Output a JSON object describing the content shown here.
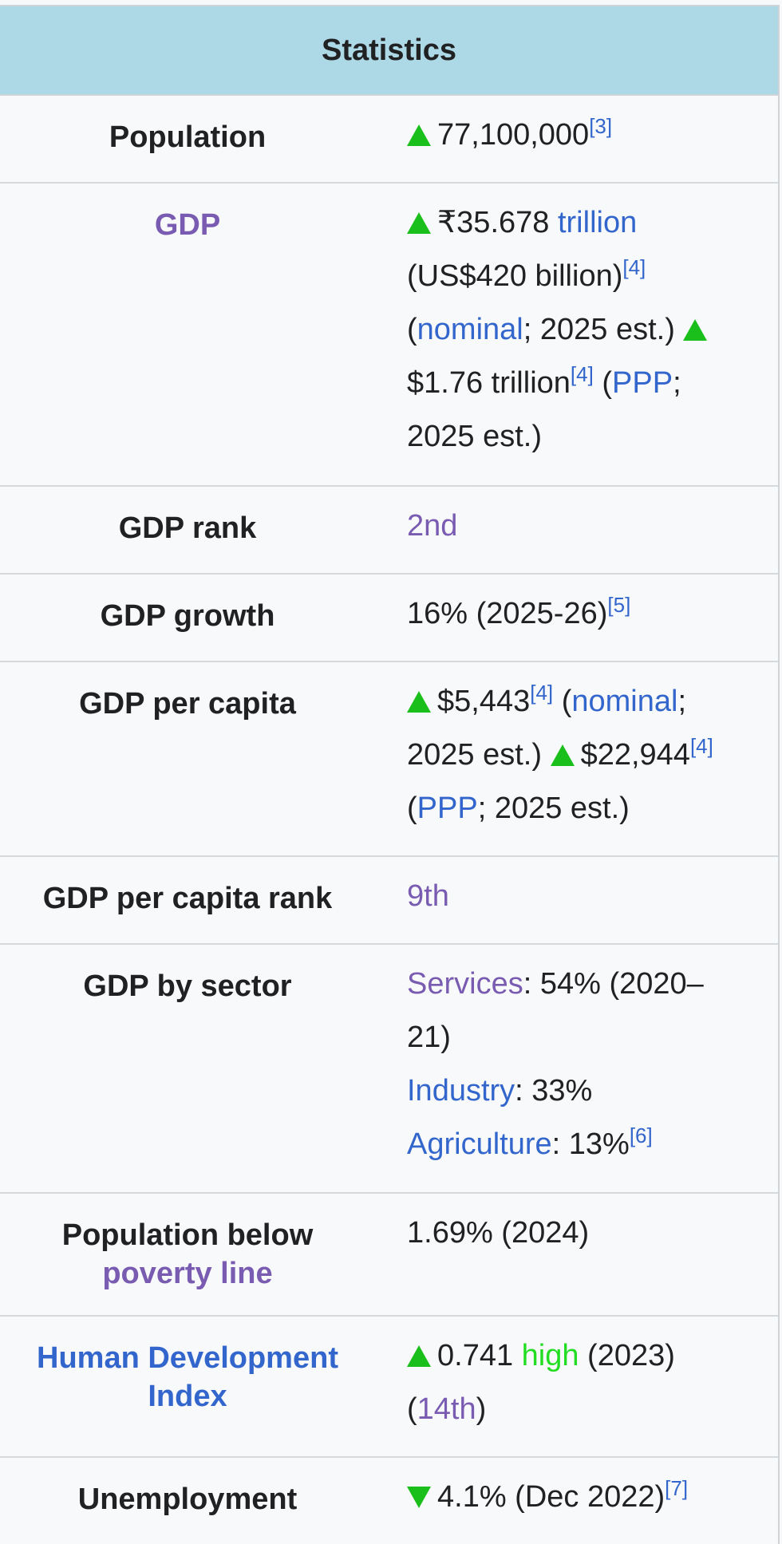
{
  "header": {
    "title": "Statistics"
  },
  "rows": {
    "population": {
      "label": "Population",
      "value": "77,100,000",
      "ref": "[3]"
    },
    "gdp": {
      "label": "GDP",
      "rupee_value": "₹35.678",
      "trillion": "trillion",
      "usd_value": "(US$420 billion)",
      "ref1": "[4]",
      "open_paren": "(",
      "nominal": "nominal",
      "nominal_suffix": "; 2025 est.)",
      "ppp_value": "$1.76 trillion",
      "ref2": "[4]",
      "open_paren2": " (",
      "ppp": "PPP",
      "ppp_suffix": "; 2025 est.)"
    },
    "gdp_rank": {
      "label": "GDP rank",
      "value": "2nd"
    },
    "gdp_growth": {
      "label": "GDP growth",
      "value": "16% (2025-26)",
      "ref": "[5]"
    },
    "gdp_per_capita": {
      "label": "GDP per capita",
      "nominal_value": "$5,443",
      "ref1": "[4]",
      "open_paren": " (",
      "nominal": "nominal",
      "nominal_suffix": "; 2025 est.)",
      "ppp_value": "$22,944",
      "ref2": "[4]",
      "open_paren2": " (",
      "ppp": "PPP",
      "ppp_suffix": "; 2025 est.)"
    },
    "gdp_per_capita_rank": {
      "label": "GDP per capita rank",
      "value": "9th"
    },
    "gdp_by_sector": {
      "label": "GDP by sector",
      "services": "Services",
      "services_value": ": 54% (2020–21)",
      "industry": "Industry",
      "industry_value": ": 33%",
      "agriculture": "Agriculture",
      "agriculture_value": ": 13%",
      "ref": "[6]"
    },
    "poverty": {
      "label_line1": "Population below",
      "label_link": "poverty line",
      "value": "1.69% (2024)"
    },
    "hdi": {
      "label": "Human Development Index",
      "value": "0.741",
      "level": "high",
      "year": " (2023)",
      "open_paren": "(",
      "rank": "14th",
      "close_paren": ")"
    },
    "unemployment": {
      "label": "Unemployment",
      "value": "4.1% (Dec 2022)",
      "ref": "[7]"
    }
  },
  "colors": {
    "header_bg": "#add8e6",
    "link": "#3366cc",
    "visited_link": "#795cb2",
    "trend": "#1bbf1b",
    "high": "#22dd22"
  }
}
